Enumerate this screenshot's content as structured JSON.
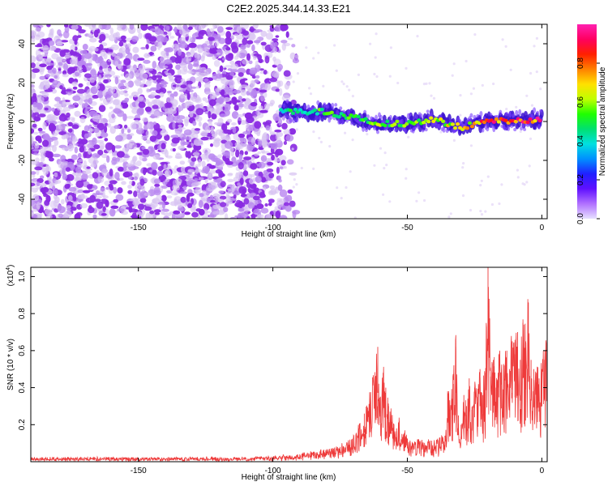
{
  "title": "C2E2.2025.344.14.33.E21",
  "colors": {
    "snr_line": "#ee3a3a",
    "scatter_noise": "#8a2be2",
    "scatter_light": "#d8c4f2",
    "axis": "#000000"
  },
  "chart_data": [
    {
      "type": "heatmap",
      "title": "C2E2.2025.344.14.33.E21",
      "xlabel": "Height of straight line (km)",
      "ylabel": "Frequency (Hz)",
      "xlim": [
        -190,
        2
      ],
      "ylim": [
        -50,
        50
      ],
      "xticks": [
        -150,
        -100,
        -50,
        0
      ],
      "yticks": [
        -40,
        -20,
        0,
        20,
        40
      ],
      "colorbar": {
        "label": "Normalized spectral amplitude",
        "range": [
          0.0,
          1.0
        ],
        "ticks": [
          "0.0",
          "0.2",
          "0.4",
          "0.6",
          "0.8"
        ],
        "tick_values": [
          0.0,
          0.2,
          0.4,
          0.6,
          0.8
        ],
        "colormap": [
          "#e6e0ff",
          "#b070ff",
          "#6010ff",
          "#2020ff",
          "#0090ff",
          "#00e0e0",
          "#00e070",
          "#20ff00",
          "#c0ff00",
          "#ffe000",
          "#ff8000",
          "#ff2000",
          "#ff0060",
          "#ff20b0"
        ]
      },
      "noise_region": {
        "x_range": [
          -190,
          -93
        ],
        "mean_amplitude": 0.2
      },
      "signal_track": {
        "x": [
          -97,
          -90,
          -80,
          -70,
          -60,
          -50,
          -40,
          -30,
          -20,
          -10,
          0
        ],
        "frequency": [
          6,
          5,
          5,
          2,
          -1,
          -1,
          1,
          -3,
          0,
          0.5,
          1
        ],
        "amplitude": [
          0.45,
          0.5,
          0.55,
          0.55,
          0.6,
          0.6,
          0.65,
          0.7,
          0.85,
          0.95,
          0.9
        ]
      }
    },
    {
      "type": "line",
      "xlabel": "Height of straight line (km)",
      "ylabel": "SNR (10 * v/v)",
      "y_multiplier": "(x10",
      "y_multiplier_exp": "4",
      "y_multiplier_close": ")",
      "xlim": [
        -190,
        2
      ],
      "ylim": [
        0,
        1.05
      ],
      "xticks": [
        -150,
        -100,
        -50,
        0
      ],
      "yticks": [
        0.2,
        0.4,
        0.6,
        0.8,
        1.0
      ],
      "series": [
        {
          "name": "SNR",
          "x": [
            -190,
            -160,
            -130,
            -110,
            -100,
            -95,
            -90,
            -85,
            -80,
            -75,
            -72,
            -70,
            -68,
            -66,
            -64,
            -62,
            -61,
            -60,
            -59,
            -58,
            -57,
            -56,
            -55,
            -54,
            -53,
            -52,
            -51,
            -50,
            -48,
            -46,
            -44,
            -42,
            -40,
            -38,
            -36,
            -35,
            -34,
            -33,
            -32,
            -31,
            -30,
            -29,
            -28,
            -27,
            -26,
            -25,
            -24,
            -23,
            -22,
            -21,
            -20,
            -19,
            -18,
            -17,
            -16,
            -15,
            -14,
            -13,
            -12,
            -11,
            -10,
            -9,
            -8,
            -7,
            -6,
            -5,
            -4,
            -3,
            -2,
            -1,
            0,
            1,
            2
          ],
          "y": [
            0.02,
            0.02,
            0.02,
            0.02,
            0.025,
            0.03,
            0.04,
            0.05,
            0.06,
            0.08,
            0.1,
            0.13,
            0.18,
            0.26,
            0.34,
            0.46,
            0.62,
            0.35,
            0.48,
            0.4,
            0.3,
            0.25,
            0.2,
            0.18,
            0.22,
            0.15,
            0.16,
            0.12,
            0.1,
            0.12,
            0.09,
            0.11,
            0.1,
            0.12,
            0.14,
            0.38,
            0.28,
            0.42,
            0.62,
            0.25,
            0.2,
            0.36,
            0.3,
            0.45,
            0.28,
            0.4,
            0.32,
            0.5,
            0.36,
            0.48,
            1.05,
            0.46,
            0.55,
            0.4,
            0.58,
            0.48,
            0.52,
            0.6,
            0.5,
            0.65,
            0.58,
            0.7,
            0.55,
            0.75,
            0.65,
            0.86,
            0.55,
            0.5,
            0.48,
            0.45,
            0.5,
            0.55,
            0.6
          ]
        }
      ]
    }
  ]
}
